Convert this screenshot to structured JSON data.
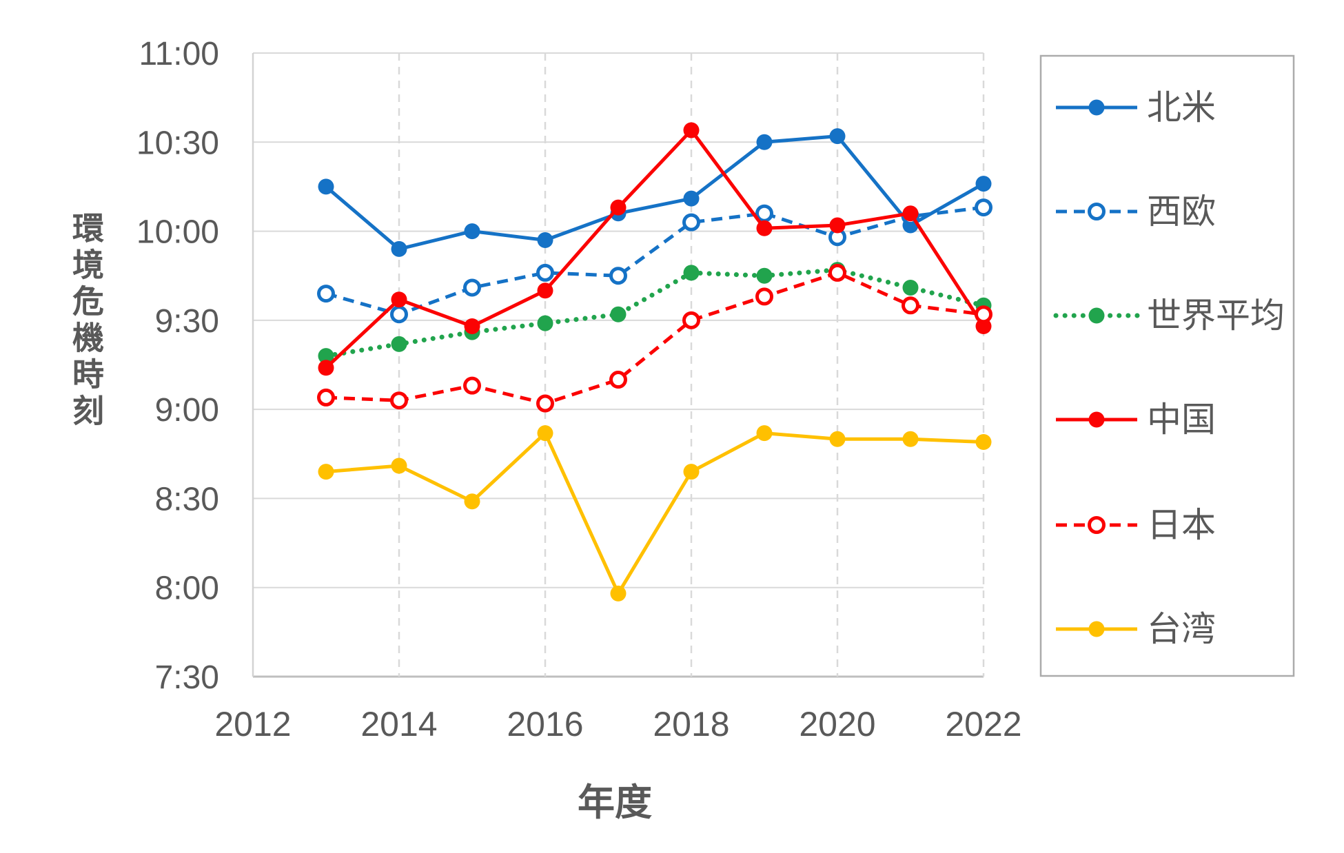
{
  "chart_data": {
    "type": "line",
    "title": "",
    "xlabel": "年度",
    "ylabel": "環境危機時刻",
    "x": [
      2013,
      2014,
      2015,
      2016,
      2017,
      2018,
      2019,
      2020,
      2021,
      2022
    ],
    "x_tick_labels": [
      "2012",
      "2014",
      "2016",
      "2018",
      "2020",
      "2022"
    ],
    "x_tick_years": [
      2012,
      2014,
      2016,
      2018,
      2020,
      2022
    ],
    "y_tick_labels": [
      "11:00",
      "10:30",
      "10:00",
      "9:30",
      "9:00",
      "8:30",
      "8:00",
      "7:30"
    ],
    "ylim": [
      "7:30",
      "11:00"
    ],
    "grid": true,
    "legend_position": "right",
    "series": [
      {
        "name": "北米",
        "color": "#1572C6",
        "line_style": "solid",
        "marker": "filled-circle",
        "values": [
          "10:15",
          "9:54",
          "10:00",
          "9:57",
          "10:06",
          "10:11",
          "10:30",
          "10:32",
          "10:02",
          "10:16"
        ]
      },
      {
        "name": "西欧",
        "color": "#1572C6",
        "line_style": "dashed",
        "marker": "open-circle",
        "values": [
          "9:39",
          "9:32",
          "9:41",
          "9:46",
          "9:45",
          "10:03",
          "10:06",
          "9:58",
          "10:05",
          "10:08"
        ]
      },
      {
        "name": "世界平均",
        "color": "#21A44D",
        "line_style": "dotted",
        "marker": "filled-circle",
        "values": [
          "9:18",
          "9:22",
          "9:26",
          "9:29",
          "9:32",
          "9:46",
          "9:45",
          "9:47",
          "9:41",
          "9:35"
        ]
      },
      {
        "name": "中国",
        "color": "#FB0303",
        "line_style": "solid",
        "marker": "filled-circle",
        "values": [
          "9:14",
          "9:37",
          "9:28",
          "9:40",
          "10:08",
          "10:34",
          "10:01",
          "10:02",
          "10:06",
          "9:28"
        ]
      },
      {
        "name": "日本",
        "color": "#FB0303",
        "line_style": "dashed",
        "marker": "open-circle",
        "values": [
          "9:04",
          "9:03",
          "9:08",
          "9:02",
          "9:10",
          "9:30",
          "9:38",
          "9:46",
          "9:35",
          "9:32"
        ]
      },
      {
        "name": "台湾",
        "color": "#FFC000",
        "line_style": "solid",
        "marker": "filled-circle",
        "values": [
          "8:39",
          "8:41",
          "8:29",
          "8:52",
          "7:58",
          "8:39",
          "8:52",
          "8:50",
          "8:50",
          "8:49"
        ]
      }
    ],
    "colors": {
      "text": "#595959",
      "gridline": "#D9D9D9",
      "axis_line": "#BFBFBF",
      "plot_border": "#D2D2D2",
      "legend_border": "#ABABAB",
      "background": "#FFFFFF"
    }
  }
}
